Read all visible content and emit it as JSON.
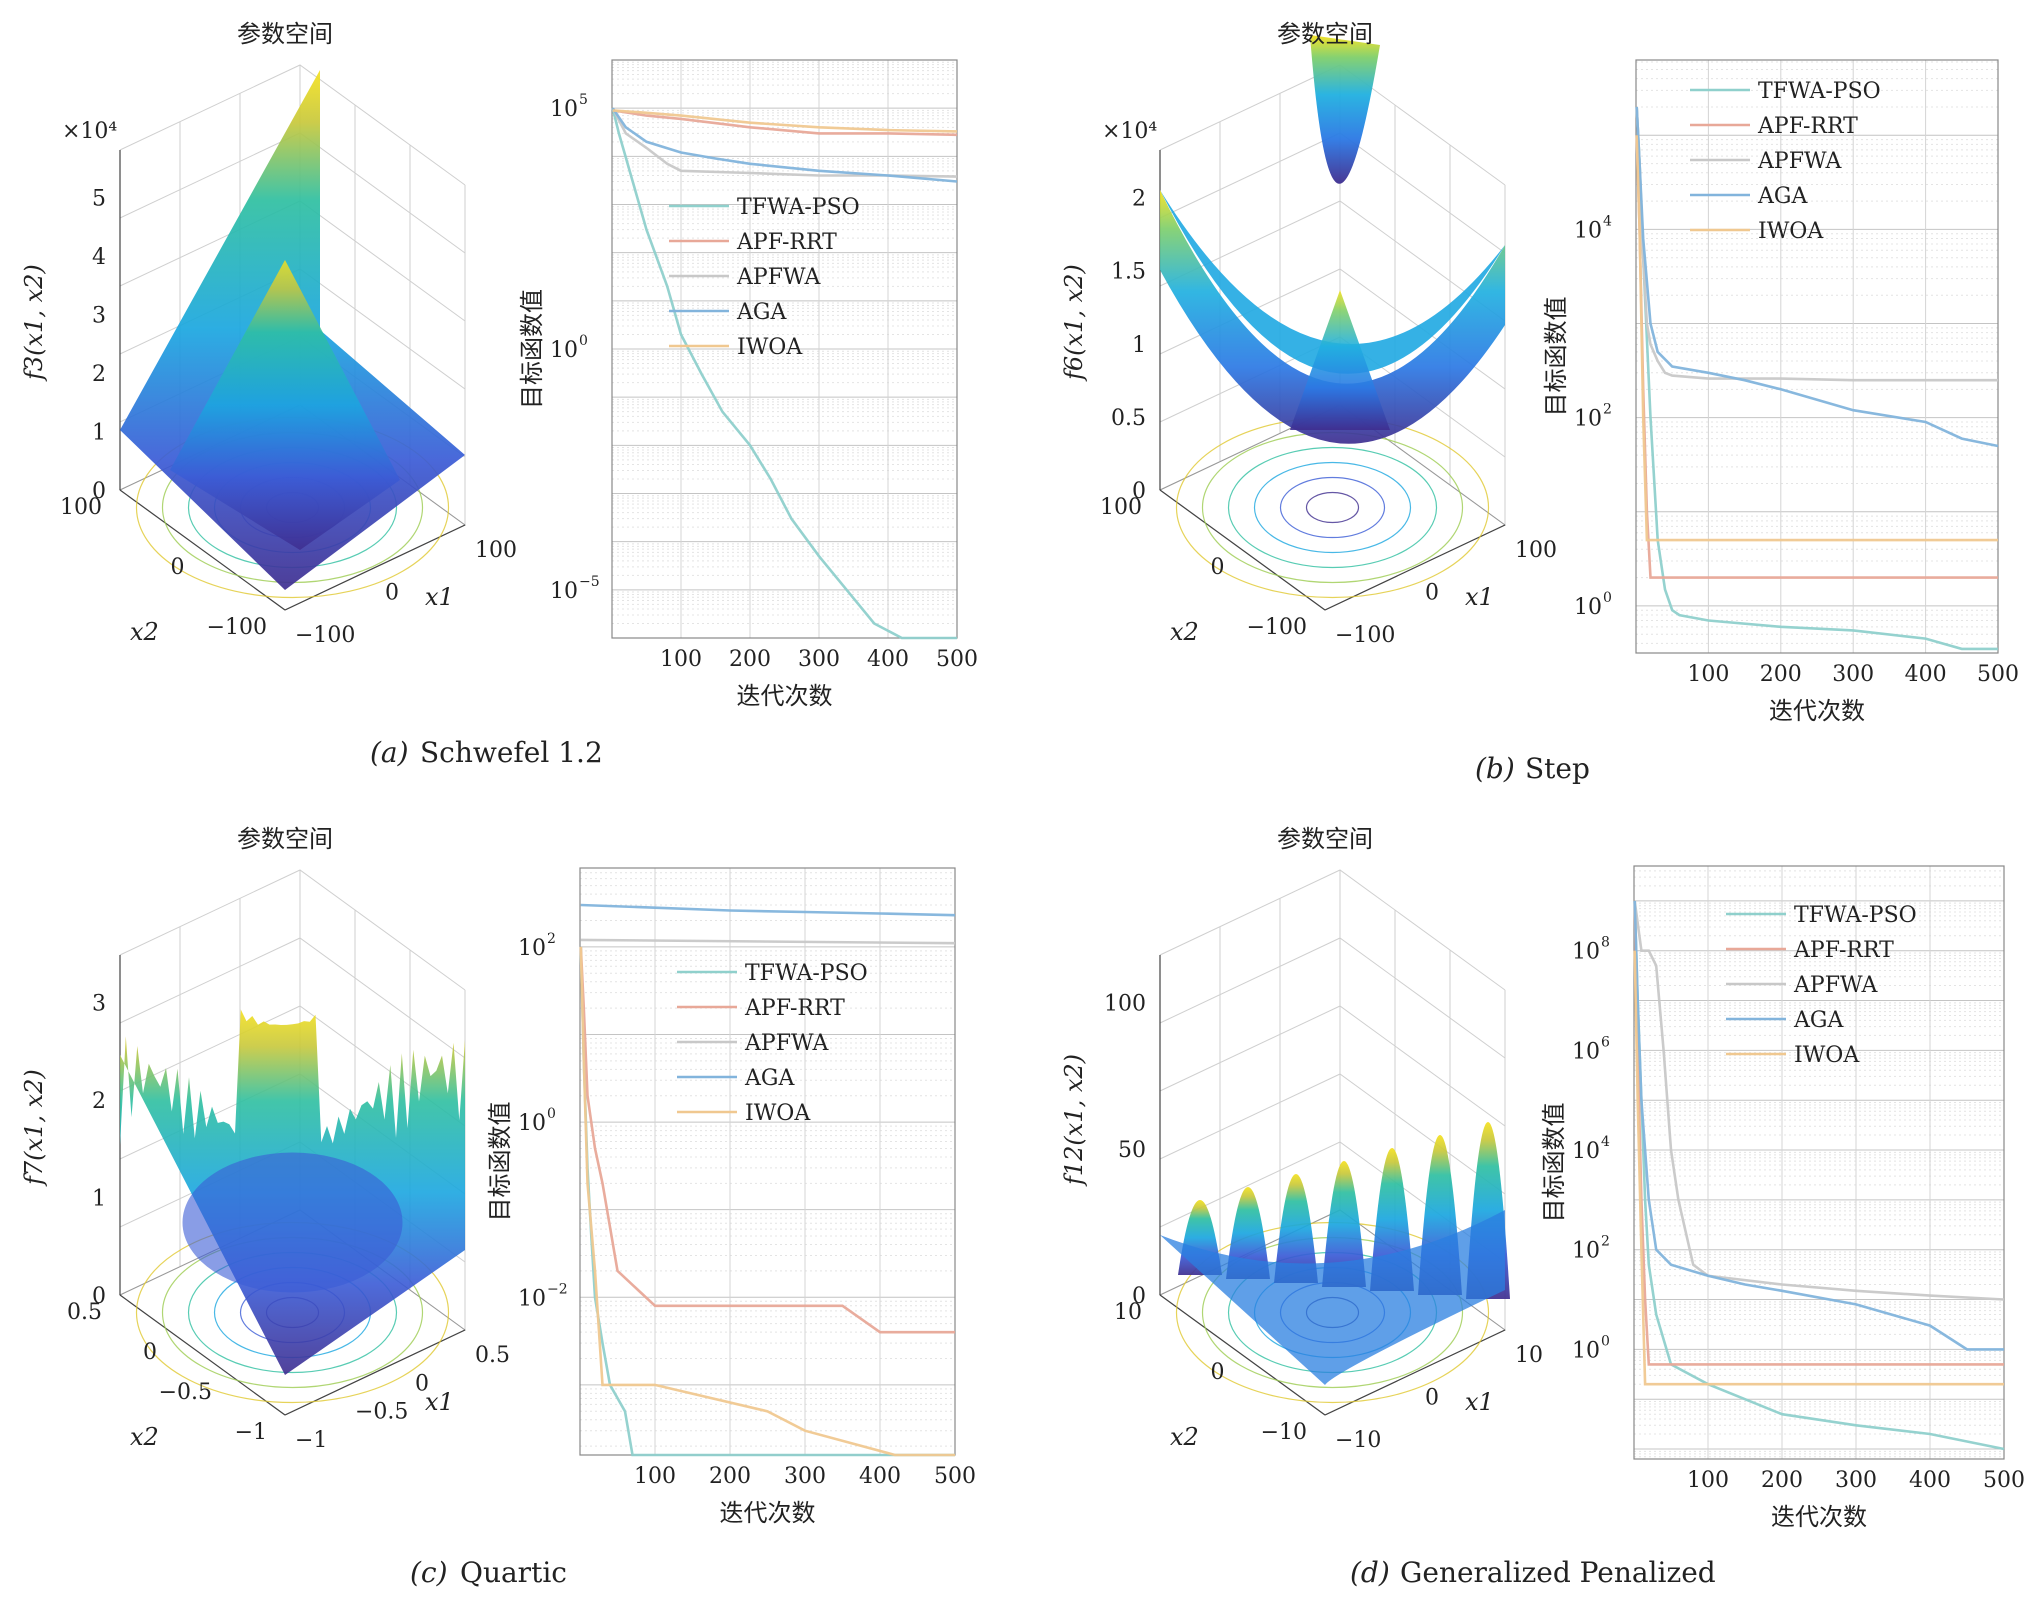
{
  "figure": {
    "panels": [
      {
        "id": "a",
        "caption_letter": "(a)",
        "caption_name": "Schwefel 1.2",
        "surface": {
          "title": "参数空间",
          "zlabel": "f3(x1, x2)",
          "zlabel_main": "f",
          "zlabel_sub": "3",
          "xlabel": "x1",
          "ylabel": "x2",
          "z_exponent_label": "×10⁴",
          "z_ticks": [
            "0",
            "1",
            "2",
            "3",
            "4",
            "5"
          ],
          "x_ticks": [
            "−100",
            "0",
            "100"
          ],
          "y_ticks": [
            "100",
            "0",
            "−100"
          ],
          "shape": "pyramid"
        },
        "convergence": {
          "type": "line",
          "ylabel": "目标函数值",
          "xlabel": "迭代次数",
          "yscale": "log",
          "x_ticks": [
            "100",
            "200",
            "300",
            "400",
            "500"
          ],
          "y_ticks": [
            {
              "base": "10",
              "exp": "5"
            },
            {
              "base": "10",
              "exp": "0"
            },
            {
              "base": "10",
              "exp": "−5"
            }
          ],
          "legend": [
            "TFWA-PSO",
            "APF-RRT",
            "APFWA",
            "AGA",
            "IWOA"
          ]
        }
      },
      {
        "id": "b",
        "caption_letter": "(b)",
        "caption_name": "Step",
        "surface": {
          "title": "参数空间",
          "zlabel": "f6(x1, x2)",
          "zlabel_main": "f",
          "zlabel_sub": "6",
          "xlabel": "x1",
          "ylabel": "x2",
          "z_exponent_label": "×10⁴",
          "z_ticks": [
            "0",
            "0.5",
            "1",
            "1.5",
            "2"
          ],
          "x_ticks": [
            "−100",
            "0",
            "100"
          ],
          "y_ticks": [
            "100",
            "0",
            "−100"
          ],
          "shape": "bowl"
        },
        "convergence": {
          "type": "line",
          "ylabel": "目标函数值",
          "xlabel": "迭代次数",
          "yscale": "log",
          "x_ticks": [
            "100",
            "200",
            "300",
            "400",
            "500"
          ],
          "y_ticks": [
            {
              "base": "10",
              "exp": "4"
            },
            {
              "base": "10",
              "exp": "2"
            },
            {
              "base": "10",
              "exp": "0"
            }
          ],
          "legend": [
            "TFWA-PSO",
            "APF-RRT",
            "APFWA",
            "AGA",
            "IWOA"
          ]
        }
      },
      {
        "id": "c",
        "caption_letter": "(c)",
        "caption_name": "Quartic",
        "surface": {
          "title": "参数空间",
          "zlabel": "f7(x1, x2)",
          "zlabel_main": "f",
          "zlabel_sub": "7",
          "xlabel": "x1",
          "ylabel": "x2",
          "z_exponent_label": "",
          "z_ticks": [
            "0",
            "1",
            "2",
            "3"
          ],
          "x_ticks": [
            "−1",
            "−0.5",
            "0",
            "0.5"
          ],
          "y_ticks": [
            "0.5",
            "0",
            "−0.5",
            "−1"
          ],
          "shape": "noisy"
        },
        "convergence": {
          "type": "line",
          "ylabel": "目标函数值",
          "xlabel": "迭代次数",
          "yscale": "log",
          "x_ticks": [
            "100",
            "200",
            "300",
            "400",
            "500"
          ],
          "y_ticks": [
            {
              "base": "10",
              "exp": "2"
            },
            {
              "base": "10",
              "exp": "0"
            },
            {
              "base": "10",
              "exp": "−2"
            }
          ],
          "legend": [
            "TFWA-PSO",
            "APF-RRT",
            "APFWA",
            "AGA",
            "IWOA"
          ]
        }
      },
      {
        "id": "d",
        "caption_letter": "(d)",
        "caption_name": "Generalized Penalized",
        "surface": {
          "title": "参数空间",
          "zlabel": "f12(x1, x2)",
          "zlabel_main": "f",
          "zlabel_sub": "12",
          "xlabel": "x1",
          "ylabel": "x2",
          "z_exponent_label": "",
          "z_ticks": [
            "0",
            "50",
            "100"
          ],
          "x_ticks": [
            "−10",
            "0",
            "10"
          ],
          "y_ticks": [
            "10",
            "0",
            "−10"
          ],
          "shape": "waves"
        },
        "convergence": {
          "type": "line",
          "ylabel": "目标函数值",
          "xlabel": "迭代次数",
          "yscale": "log",
          "x_ticks": [
            "100",
            "200",
            "300",
            "400",
            "500"
          ],
          "y_ticks": [
            {
              "base": "10",
              "exp": "8"
            },
            {
              "base": "10",
              "exp": "6"
            },
            {
              "base": "10",
              "exp": "4"
            },
            {
              "base": "10",
              "exp": "2"
            },
            {
              "base": "10",
              "exp": "0"
            }
          ],
          "legend": [
            "TFWA-PSO",
            "APF-RRT",
            "APFWA",
            "AGA",
            "IWOA"
          ]
        }
      }
    ],
    "series_colors": {
      "TFWA-PSO": "#8fd0cc",
      "APF-RRT": "#e8a898",
      "APFWA": "#c8c8c8",
      "AGA": "#82b4dc",
      "IWOA": "#f0c890"
    }
  },
  "chart_data": [
    {
      "type": "line",
      "panel": "a",
      "xlim": [
        0,
        500
      ],
      "ylim_log10": [
        -6,
        6
      ],
      "series": [
        {
          "name": "TFWA-PSO",
          "x": [
            1,
            10,
            30,
            50,
            80,
            100,
            130,
            160,
            200,
            230,
            260,
            300,
            340,
            380,
            420,
            460,
            500
          ],
          "y": [
            100000.0,
            30000.0,
            3000.0,
            300,
            20,
            2,
            0.3,
            0.05,
            0.01,
            0.002,
            0.0003,
            5e-05,
            1e-05,
            2e-06,
            5e-07,
            2e-07,
            1e-07
          ]
        },
        {
          "name": "APF-RRT",
          "x": [
            1,
            50,
            100,
            200,
            300,
            400,
            500
          ],
          "y": [
            90000.0,
            70000.0,
            60000.0,
            40000.0,
            30000.0,
            30000.0,
            28000.0
          ]
        },
        {
          "name": "APFWA",
          "x": [
            1,
            20,
            50,
            80,
            100,
            200,
            300,
            400,
            500
          ],
          "y": [
            100000.0,
            30000.0,
            15000.0,
            7000.0,
            5000.0,
            4500.0,
            4000.0,
            4000.0,
            3800.0
          ]
        },
        {
          "name": "AGA",
          "x": [
            1,
            20,
            50,
            100,
            150,
            200,
            300,
            400,
            500
          ],
          "y": [
            100000.0,
            40000.0,
            20000.0,
            12000.0,
            9000.0,
            7000.0,
            5000.0,
            4000.0,
            3000.0
          ]
        },
        {
          "name": "IWOA",
          "x": [
            1,
            50,
            100,
            200,
            300,
            400,
            500
          ],
          "y": [
            90000.0,
            80000.0,
            70000.0,
            50000.0,
            40000.0,
            35000.0,
            33000.0
          ]
        }
      ]
    },
    {
      "type": "line",
      "panel": "b",
      "xlim": [
        0,
        500
      ],
      "ylim_log10": [
        -0.5,
        5.8
      ],
      "series": [
        {
          "name": "TFWA-PSO",
          "x": [
            1,
            5,
            10,
            20,
            30,
            40,
            50,
            60,
            100,
            200,
            300,
            400,
            450,
            500
          ],
          "y": [
            200000.0,
            50000.0,
            5000.0,
            100,
            5,
            1.5,
            0.9,
            0.8,
            0.7,
            0.6,
            0.55,
            0.45,
            0.35,
            0.35
          ]
        },
        {
          "name": "APF-RRT",
          "x": [
            1,
            5,
            10,
            15,
            20,
            500
          ],
          "y": [
            100000.0,
            10000.0,
            200,
            10,
            2,
            2
          ]
        },
        {
          "name": "APFWA",
          "x": [
            1,
            5,
            10,
            15,
            20,
            30,
            40,
            50,
            100,
            200,
            300,
            400,
            500
          ],
          "y": [
            200000.0,
            50000.0,
            5000.0,
            1000.0,
            600,
            400,
            300,
            280,
            260,
            260,
            250,
            250,
            250
          ]
        },
        {
          "name": "AGA",
          "x": [
            1,
            5,
            10,
            20,
            30,
            50,
            100,
            150,
            200,
            300,
            400,
            450,
            500
          ],
          "y": [
            200000.0,
            50000.0,
            8000.0,
            1000.0,
            500,
            350,
            300,
            250,
            200,
            120,
            90,
            60,
            50
          ]
        },
        {
          "name": "IWOA",
          "x": [
            1,
            5,
            10,
            15,
            500
          ],
          "y": [
            100000.0,
            10000.0,
            100,
            5,
            5
          ]
        }
      ]
    },
    {
      "type": "line",
      "panel": "c",
      "xlim": [
        0,
        500
      ],
      "ylim_log10": [
        -3.8,
        2.9
      ],
      "series": [
        {
          "name": "TFWA-PSO",
          "x": [
            1,
            5,
            10,
            15,
            20,
            30,
            40,
            60,
            70,
            500
          ],
          "y": [
            100,
            5,
            0.3,
            0.05,
            0.01,
            0.003,
            0.001,
            0.0005,
            0.00015,
            0.00015
          ]
        },
        {
          "name": "APF-RRT",
          "x": [
            1,
            5,
            10,
            20,
            30,
            50,
            100,
            200,
            350,
            400,
            500
          ],
          "y": [
            100,
            20,
            2,
            0.5,
            0.2,
            0.02,
            0.008,
            0.008,
            0.008,
            0.004,
            0.004
          ]
        },
        {
          "name": "APFWA",
          "x": [
            1,
            500
          ],
          "y": [
            120,
            110
          ]
        },
        {
          "name": "AGA",
          "x": [
            1,
            100,
            200,
            300,
            400,
            500
          ],
          "y": [
            300,
            280,
            260,
            250,
            240,
            230
          ]
        },
        {
          "name": "IWOA",
          "x": [
            1,
            5,
            10,
            20,
            30,
            100,
            250,
            300,
            420,
            500
          ],
          "y": [
            100,
            5,
            0.2,
            0.02,
            0.001,
            0.001,
            0.0005,
            0.0003,
            0.00015,
            0.00015
          ]
        }
      ]
    },
    {
      "type": "line",
      "panel": "d",
      "xlim": [
        0,
        500
      ],
      "ylim_log10": [
        -2.2,
        9.7
      ],
      "series": [
        {
          "name": "TFWA-PSO",
          "x": [
            1,
            5,
            10,
            15,
            20,
            30,
            50,
            100,
            150,
            200,
            300,
            400,
            500
          ],
          "y": [
            1000000000.0,
            10000000.0,
            100000.0,
            1000,
            50,
            5,
            0.5,
            0.2,
            0.1,
            0.05,
            0.03,
            0.02,
            0.01
          ]
        },
        {
          "name": "APF-RRT",
          "x": [
            1,
            5,
            10,
            15,
            20,
            500
          ],
          "y": [
            1000000000.0,
            1000000.0,
            1000,
            10,
            0.5,
            0.5
          ]
        },
        {
          "name": "APFWA",
          "x": [
            1,
            10,
            20,
            30,
            40,
            45,
            50,
            60,
            80,
            100,
            200,
            300,
            400,
            500
          ],
          "y": [
            1000000000.0,
            100000000.0,
            100000000.0,
            50000000.0,
            1000000.0,
            100000.0,
            10000.0,
            1000,
            50,
            30,
            20,
            15,
            12,
            10
          ]
        },
        {
          "name": "AGA",
          "x": [
            1,
            5,
            10,
            20,
            30,
            50,
            100,
            150,
            200,
            300,
            400,
            450,
            500
          ],
          "y": [
            1000000000.0,
            10000000.0,
            100000.0,
            1000,
            100,
            50,
            30,
            20,
            15,
            8,
            3,
            1,
            1
          ]
        },
        {
          "name": "IWOA",
          "x": [
            1,
            5,
            10,
            15,
            500
          ],
          "y": [
            100000000.0,
            100000.0,
            100,
            0.2,
            0.2
          ]
        }
      ]
    }
  ]
}
